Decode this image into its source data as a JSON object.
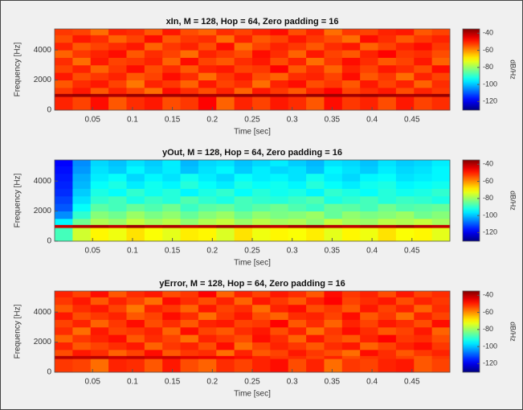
{
  "chart_data": [
    {
      "type": "heatmap",
      "title": "xIn, M = 128, Hop = 64, Zero padding = 16",
      "xlabel": "Time [sec]",
      "ylabel": "Frequency [Hz]",
      "colorbar_label": "dB/Hz",
      "colormap": "jet",
      "xlim": [
        0.0025,
        0.4975
      ],
      "ylim": [
        0,
        5400
      ],
      "clim": [
        -130,
        -35
      ],
      "xticks": [
        0.05,
        0.1,
        0.15,
        0.2,
        0.25,
        0.3,
        0.35,
        0.4,
        0.45
      ],
      "yticks": [
        0,
        2000,
        4000
      ],
      "cticks": [
        -40,
        -60,
        -80,
        -100,
        -120
      ],
      "xbins": [
        0.0025,
        0.025,
        0.0475,
        0.07,
        0.0925,
        0.115,
        0.1375,
        0.16,
        0.1825,
        0.205,
        0.2275,
        0.25,
        0.2725,
        0.295,
        0.3175,
        0.34,
        0.3625,
        0.385,
        0.4075,
        0.43,
        0.4525,
        0.475,
        0.4975
      ],
      "ybins": [
        0,
        900,
        1100,
        1500,
        2000,
        2500,
        3000,
        3500,
        4000,
        4500,
        5000,
        5400
      ],
      "z": [
        [
          -50,
          -53,
          -48,
          -55,
          -51,
          -49,
          -54,
          -52,
          -47,
          -56,
          -50,
          -53,
          -49,
          -51,
          -55,
          -48,
          -52,
          -50,
          -54,
          -49,
          -53,
          -51
        ],
        [
          -38,
          -37,
          -38,
          -39,
          -37,
          -38,
          -38,
          -37,
          -39,
          -38,
          -37,
          -38,
          -38,
          -39,
          -37,
          -38,
          -38,
          -37,
          -38,
          -39,
          -38,
          -37
        ],
        [
          -52,
          -49,
          -55,
          -50,
          -53,
          -57,
          -48,
          -51,
          -54,
          -50,
          -56,
          -49,
          -52,
          -55,
          -50,
          -47,
          -53,
          -51,
          -49,
          -54,
          -50,
          -52
        ],
        [
          -55,
          -51,
          -49,
          -53,
          -58,
          -50,
          -52,
          -56,
          -49,
          -53,
          -51,
          -57,
          -50,
          -48,
          -54,
          -52,
          -55,
          -49,
          -53,
          -50,
          -56,
          -51
        ],
        [
          -49,
          -54,
          -52,
          -50,
          -55,
          -53,
          -48,
          -51,
          -57,
          -52,
          -49,
          -54,
          -56,
          -51,
          -50,
          -53,
          -48,
          -55,
          -52,
          -57,
          -50,
          -53
        ],
        [
          -53,
          -50,
          -56,
          -52,
          -48,
          -54,
          -51,
          -55,
          -50,
          -49,
          -53,
          -52,
          -47,
          -55,
          -51,
          -56,
          -50,
          -53,
          -49,
          -51,
          -54,
          -48
        ],
        [
          -51,
          -57,
          -49,
          -53,
          -52,
          -50,
          -56,
          -48,
          -53,
          -55,
          -51,
          -49,
          -54,
          -50,
          -57,
          -52,
          -48,
          -51,
          -55,
          -53,
          -49,
          -56
        ],
        [
          -56,
          -52,
          -50,
          -48,
          -55,
          -51,
          -53,
          -57,
          -50,
          -52,
          -54,
          -48,
          -51,
          -56,
          -49,
          -53,
          -55,
          -50,
          -47,
          -52,
          -51,
          -54
        ],
        [
          -50,
          -55,
          -53,
          -51,
          -49,
          -56,
          -52,
          -50,
          -54,
          -48,
          -57,
          -53,
          -50,
          -52,
          -55,
          -51,
          -49,
          -56,
          -53,
          -50,
          -48,
          -52
        ],
        [
          -54,
          -49,
          -51,
          -56,
          -53,
          -48,
          -55,
          -52,
          -51,
          -57,
          -50,
          -55,
          -53,
          -49,
          -52,
          -54,
          -57,
          -48,
          -51,
          -55,
          -52,
          -50
        ],
        [
          -52,
          -53,
          -57,
          -50,
          -51,
          -55,
          -49,
          -54,
          -56,
          -51,
          -53,
          -50,
          -48,
          -54,
          -50,
          -57,
          -52,
          -53,
          -50,
          -49,
          -55,
          -53
        ]
      ]
    },
    {
      "type": "heatmap",
      "title": "yOut, M = 128, Hop = 64, Zero padding = 16",
      "xlabel": "Time [sec]",
      "ylabel": "Frequency [Hz]",
      "colorbar_label": "dB/Hz",
      "colormap": "jet",
      "xlim": [
        0.0025,
        0.4975
      ],
      "ylim": [
        0,
        5400
      ],
      "clim": [
        -130,
        -35
      ],
      "xticks": [
        0.05,
        0.1,
        0.15,
        0.2,
        0.25,
        0.3,
        0.35,
        0.4,
        0.45
      ],
      "yticks": [
        0,
        2000,
        4000
      ],
      "cticks": [
        -40,
        -60,
        -80,
        -100,
        -120
      ],
      "xbins": [
        0.0025,
        0.025,
        0.0475,
        0.07,
        0.0925,
        0.115,
        0.1375,
        0.16,
        0.1825,
        0.205,
        0.2275,
        0.25,
        0.2725,
        0.295,
        0.3175,
        0.34,
        0.3625,
        0.385,
        0.4075,
        0.43,
        0.4525,
        0.475,
        0.4975
      ],
      "ybins": [
        0,
        900,
        1100,
        1500,
        2000,
        2500,
        3000,
        3500,
        4000,
        4500,
        5000,
        5400
      ],
      "z": [
        [
          -88,
          -75,
          -70,
          -72,
          -68,
          -71,
          -73,
          -69,
          -70,
          -74,
          -68,
          -72,
          -70,
          -71,
          -69,
          -73,
          -70,
          -72,
          -68,
          -71,
          -70,
          -73
        ],
        [
          -42,
          -40,
          -39,
          -41,
          -38,
          -40,
          -39,
          -41,
          -40,
          -38,
          -39,
          -40,
          -41,
          -39,
          -38,
          -40,
          -41,
          -39,
          -40,
          -38,
          -40,
          -41
        ],
        [
          -95,
          -84,
          -78,
          -80,
          -76,
          -79,
          -77,
          -81,
          -78,
          -76,
          -80,
          -77,
          -79,
          -78,
          -81,
          -76,
          -79,
          -80,
          -77,
          -78,
          -76,
          -79
        ],
        [
          -105,
          -90,
          -82,
          -84,
          -80,
          -83,
          -81,
          -85,
          -82,
          -80,
          -84,
          -81,
          -83,
          -82,
          -80,
          -85,
          -81,
          -83,
          -82,
          -80,
          -84,
          -82
        ],
        [
          -110,
          -94,
          -86,
          -88,
          -85,
          -87,
          -84,
          -89,
          -86,
          -85,
          -88,
          -86,
          -84,
          -87,
          -89,
          -85,
          -86,
          -88,
          -84,
          -87,
          -86,
          -85
        ],
        [
          -112,
          -97,
          -90,
          -88,
          -92,
          -89,
          -91,
          -87,
          -90,
          -92,
          -88,
          -90,
          -91,
          -89,
          -87,
          -92,
          -90,
          -88,
          -91,
          -89,
          -90,
          -92
        ],
        [
          -114,
          -99,
          -92,
          -94,
          -90,
          -93,
          -91,
          -95,
          -92,
          -90,
          -94,
          -91,
          -93,
          -92,
          -95,
          -90,
          -92,
          -94,
          -91,
          -93,
          -92,
          -90
        ],
        [
          -115,
          -101,
          -94,
          -92,
          -96,
          -93,
          -95,
          -91,
          -94,
          -96,
          -92,
          -94,
          -93,
          -95,
          -91,
          -94,
          -96,
          -93,
          -92,
          -95,
          -94,
          -93
        ],
        [
          -116,
          -102,
          -96,
          -94,
          -98,
          -95,
          -97,
          -93,
          -96,
          -98,
          -94,
          -96,
          -95,
          -97,
          -93,
          -96,
          -98,
          -95,
          -94,
          -97,
          -96,
          -95
        ],
        [
          -117,
          -104,
          -97,
          -99,
          -95,
          -98,
          -96,
          -100,
          -97,
          -95,
          -99,
          -96,
          -98,
          -97,
          -100,
          -95,
          -97,
          -99,
          -96,
          -98,
          -97,
          -95
        ],
        [
          -118,
          -105,
          -98,
          -100,
          -97,
          -99,
          -96,
          -101,
          -98,
          -97,
          -100,
          -98,
          -96,
          -99,
          -101,
          -97,
          -98,
          -100,
          -97,
          -99,
          -98,
          -96
        ]
      ]
    },
    {
      "type": "heatmap",
      "title": "yError, M = 128, Hop = 64, Zero padding = 16",
      "xlabel": "Time [sec]",
      "ylabel": "Frequency [Hz]",
      "colorbar_label": "dB/Hz",
      "colormap": "jet",
      "xlim": [
        0.0025,
        0.4975
      ],
      "ylim": [
        0,
        5400
      ],
      "clim": [
        -130,
        -35
      ],
      "xticks": [
        0.05,
        0.1,
        0.15,
        0.2,
        0.25,
        0.3,
        0.35,
        0.4,
        0.45
      ],
      "yticks": [
        0,
        2000,
        4000
      ],
      "cticks": [
        -40,
        -60,
        -80,
        -100,
        -120
      ],
      "xbins": [
        0.0025,
        0.025,
        0.0475,
        0.07,
        0.0925,
        0.115,
        0.1375,
        0.16,
        0.1825,
        0.205,
        0.2275,
        0.25,
        0.2725,
        0.295,
        0.3175,
        0.34,
        0.3625,
        0.385,
        0.4075,
        0.43,
        0.4525,
        0.475,
        0.4975
      ],
      "ybins": [
        0,
        900,
        1100,
        1500,
        2000,
        2500,
        3000,
        3500,
        4000,
        4500,
        5000,
        5400
      ],
      "z": [
        [
          -52,
          -53,
          -57,
          -50,
          -51,
          -55,
          -49,
          -54,
          -56,
          -51,
          -53,
          -50,
          -48,
          -54,
          -50,
          -57,
          -52,
          -53,
          -50,
          -49,
          -55,
          -53
        ],
        [
          -40,
          -41,
          -40,
          -42,
          -41,
          -43,
          -42,
          -44,
          -45,
          -46,
          -48,
          -50,
          -52,
          -51,
          -53,
          -50,
          -54,
          -52,
          -51,
          -53,
          -55,
          -52
        ],
        [
          -54,
          -49,
          -51,
          -56,
          -53,
          -48,
          -55,
          -52,
          -51,
          -57,
          -50,
          -55,
          -53,
          -49,
          -52,
          -54,
          -57,
          -48,
          -51,
          -55,
          -52,
          -50
        ],
        [
          -50,
          -55,
          -53,
          -51,
          -49,
          -56,
          -52,
          -50,
          -54,
          -48,
          -57,
          -53,
          -50,
          -52,
          -55,
          -51,
          -49,
          -56,
          -53,
          -50,
          -48,
          -52
        ],
        [
          -56,
          -52,
          -50,
          -48,
          -55,
          -51,
          -53,
          -57,
          -50,
          -52,
          -54,
          -48,
          -51,
          -56,
          -49,
          -53,
          -55,
          -50,
          -47,
          -52,
          -51,
          -54
        ],
        [
          -51,
          -57,
          -49,
          -53,
          -52,
          -50,
          -56,
          -48,
          -53,
          -55,
          -51,
          -49,
          -54,
          -50,
          -57,
          -52,
          -48,
          -51,
          -55,
          -53,
          -49,
          -56
        ],
        [
          -53,
          -50,
          -56,
          -52,
          -48,
          -54,
          -51,
          -55,
          -50,
          -49,
          -53,
          -52,
          -47,
          -55,
          -51,
          -56,
          -50,
          -53,
          -49,
          -51,
          -54,
          -48
        ],
        [
          -49,
          -54,
          -52,
          -50,
          -55,
          -53,
          -48,
          -51,
          -57,
          -52,
          -49,
          -54,
          -56,
          -51,
          -50,
          -53,
          -48,
          -55,
          -52,
          -57,
          -50,
          -53
        ],
        [
          -55,
          -51,
          -49,
          -53,
          -58,
          -50,
          -52,
          -56,
          -49,
          -53,
          -51,
          -57,
          -50,
          -48,
          -54,
          -52,
          -55,
          -49,
          -53,
          -50,
          -56,
          -51
        ],
        [
          -52,
          -49,
          -55,
          -50,
          -53,
          -57,
          -48,
          -51,
          -54,
          -50,
          -56,
          -49,
          -52,
          -55,
          -50,
          -47,
          -53,
          -51,
          -49,
          -54,
          -50,
          -52
        ],
        [
          -50,
          -53,
          -48,
          -55,
          -51,
          -49,
          -54,
          -52,
          -47,
          -56,
          -50,
          -53,
          -49,
          -51,
          -55,
          -48,
          -52,
          -50,
          -54,
          -49,
          -53,
          -51
        ]
      ]
    }
  ]
}
